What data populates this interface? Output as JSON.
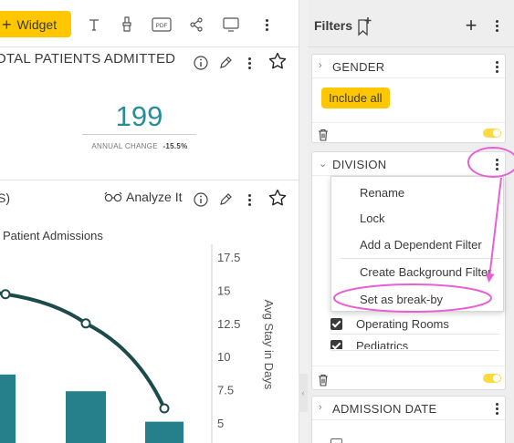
{
  "toolbar": {
    "add_widget_label": "Widget",
    "text_icon": "T",
    "pdf_label": "PDF"
  },
  "widget1": {
    "title": "OTAL PATIENTS ADMITTED",
    "value": "199",
    "annual_change_label": "ANNUAL CHANGE",
    "annual_change_value": "-15.5%"
  },
  "widget2": {
    "title": "S)",
    "analyze_label": "Analyze It"
  },
  "chart_data": {
    "type": "bar",
    "title": "Patient Admissions",
    "y2label": "Avg Stay in Days",
    "y2_ticks": [
      "17.5",
      "15",
      "12.5",
      "10",
      "7.5",
      "5"
    ],
    "y2lim": [
      5,
      17.5
    ],
    "series": [
      {
        "type": "bar",
        "values": [
          4.5,
          3.4,
          1.4
        ]
      },
      {
        "type": "line",
        "axis": "right",
        "values": [
          14.7,
          12.5,
          6.1
        ]
      }
    ],
    "colors": {
      "bar": "#25808c",
      "line": "#1c4b4b"
    }
  },
  "filters": {
    "title": "Filters",
    "gender": {
      "title": "GENDER",
      "button": "Include all"
    },
    "division": {
      "title": "DIVISION",
      "items": [
        {
          "label": "Operating Rooms",
          "checked": true
        },
        {
          "label": "Pediatrics",
          "checked": true
        }
      ]
    },
    "admission_date": {
      "title": "ADMISSION DATE"
    }
  },
  "menu": {
    "items": [
      "Rename",
      "Lock",
      "Add a Dependent Filter",
      "Create Background Filter",
      "Set as break-by"
    ]
  },
  "colors": {
    "accent": "#ffc700",
    "teal": "#2a8b99",
    "annotation": "#e95fd4"
  }
}
